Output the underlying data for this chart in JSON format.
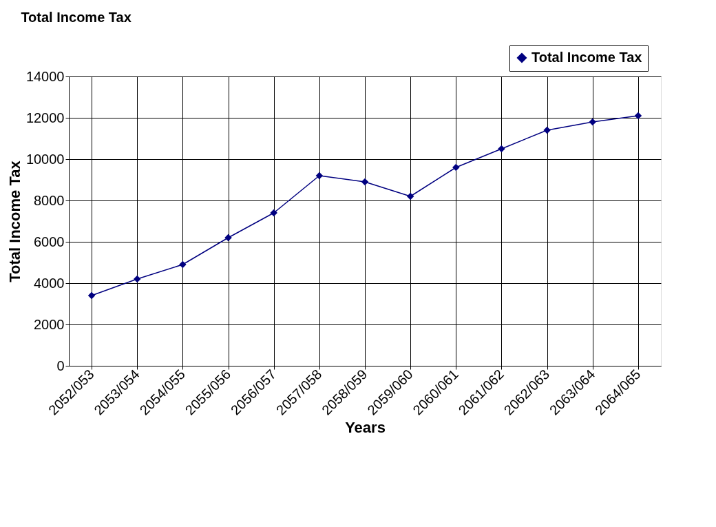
{
  "chart_data": {
    "type": "line",
    "title": "Total Income Tax",
    "xlabel": "Years",
    "ylabel": "Total Income Tax",
    "categories": [
      "2052/053",
      "2053/054",
      "2054/055",
      "2055/056",
      "2056/057",
      "2057/058",
      "2058/059",
      "2059/060",
      "2060/061",
      "2061/062",
      "2062/063",
      "2063/064",
      "2064/065"
    ],
    "series": [
      {
        "name": "Total Income Tax",
        "color": "#000080",
        "values": [
          3400,
          4200,
          4900,
          6200,
          7400,
          9200,
          8900,
          8200,
          9600,
          10500,
          11400,
          11800,
          12100
        ]
      }
    ],
    "ylim": [
      0,
      14000
    ],
    "yticks": [
      0,
      2000,
      4000,
      6000,
      8000,
      10000,
      12000,
      14000
    ],
    "grid": true,
    "legend": "top right",
    "marker": "diamond",
    "line_style": "solid"
  }
}
